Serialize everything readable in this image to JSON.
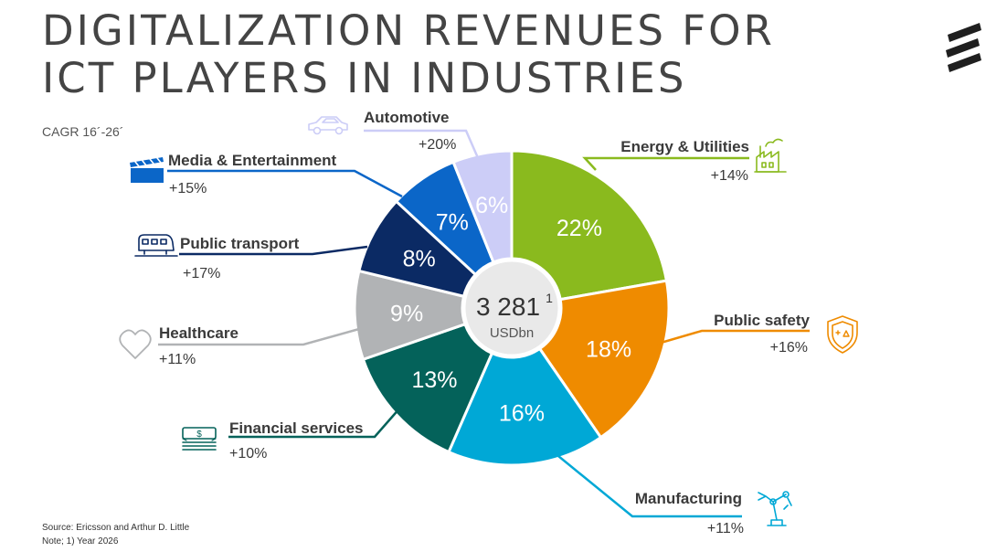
{
  "title_lines": [
    "DIGITALIZATION REVENUES FOR",
    "ICT PLAYERS IN INDUSTRIES"
  ],
  "cagr_label": "CAGR 16´-26´",
  "footer": {
    "source": "Source: Ericsson and Arthur D. Little",
    "note": "Note; 1) Year 2026"
  },
  "chart_data": {
    "type": "pie",
    "total": {
      "value": "3 281",
      "superscript": "1",
      "unit": "USDbn"
    },
    "slices": [
      {
        "label": "Energy & Utilities",
        "value": 22,
        "display": "22%",
        "cagr": "+14%",
        "color": "#8aba1e",
        "icon": "factory-icon"
      },
      {
        "label": "Public safety",
        "value": 18,
        "display": "18%",
        "cagr": "+16%",
        "color": "#ef8b00",
        "icon": "shield-icon"
      },
      {
        "label": "Manufacturing",
        "value": 16,
        "display": "16%",
        "cagr": "+11%",
        "color": "#00a8d6",
        "icon": "robot-arm-icon"
      },
      {
        "label": "Financial services",
        "value": 13,
        "display": "13%",
        "cagr": "+10%",
        "color": "#04625a",
        "icon": "money-stack-icon"
      },
      {
        "label": "Healthcare",
        "value": 9,
        "display": "9%",
        "cagr": "+11%",
        "color": "#b1b3b5",
        "icon": "heart-icon"
      },
      {
        "label": "Public transport",
        "value": 8,
        "display": "8%",
        "cagr": "+17%",
        "color": "#0b2a64",
        "icon": "train-icon"
      },
      {
        "label": "Media & Entertainment",
        "value": 7,
        "display": "7%",
        "cagr": "+15%",
        "color": "#0b66c8",
        "icon": "clapperboard-icon"
      },
      {
        "label": "Automotive",
        "value": 6,
        "display": "6%",
        "cagr": "+20%",
        "color": "#cccdf7",
        "icon": "car-icon"
      }
    ]
  }
}
